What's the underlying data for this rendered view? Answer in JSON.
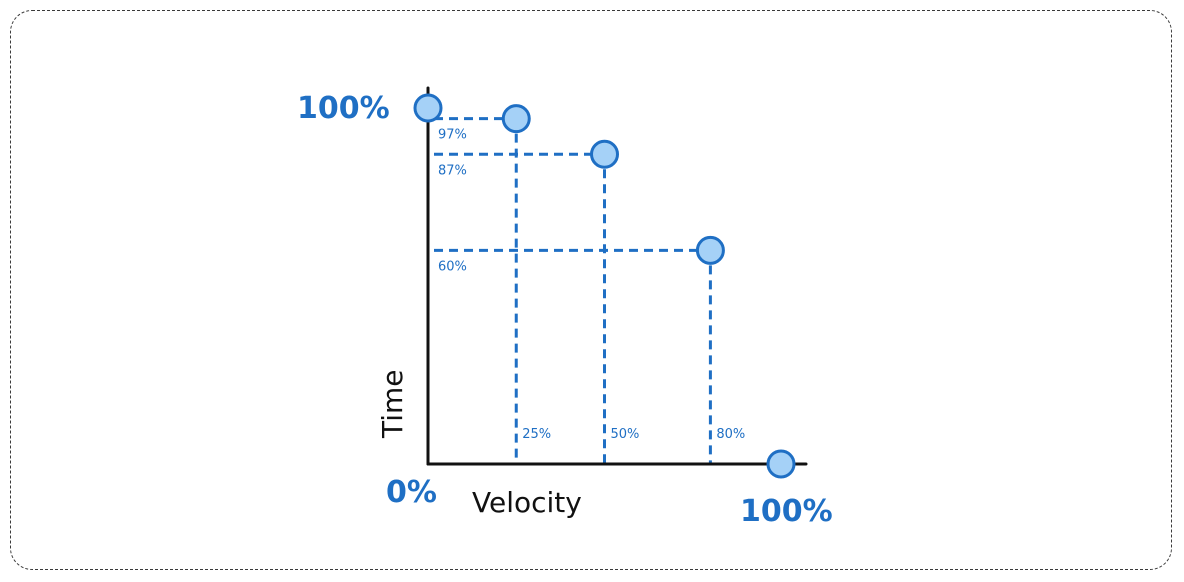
{
  "chart_data": {
    "type": "scatter",
    "title": "",
    "xlabel": "Velocity",
    "ylabel": "Time",
    "xlim": [
      0,
      100
    ],
    "ylim": [
      0,
      100
    ],
    "grid": false,
    "corner_labels": {
      "origin": "0%",
      "x_max": "100%",
      "y_max": "100%"
    },
    "points": [
      {
        "x": 0,
        "y": 100
      },
      {
        "x": 25,
        "y": 97,
        "x_label": "25%",
        "y_label": "97%"
      },
      {
        "x": 50,
        "y": 87,
        "x_label": "50%",
        "y_label": "87%"
      },
      {
        "x": 80,
        "y": 60,
        "x_label": "80%",
        "y_label": "60%"
      },
      {
        "x": 100,
        "y": 0
      }
    ],
    "colors": {
      "accent": "#1f6fc4",
      "point_fill": "#a5d1f7",
      "axis": "#111111"
    }
  }
}
